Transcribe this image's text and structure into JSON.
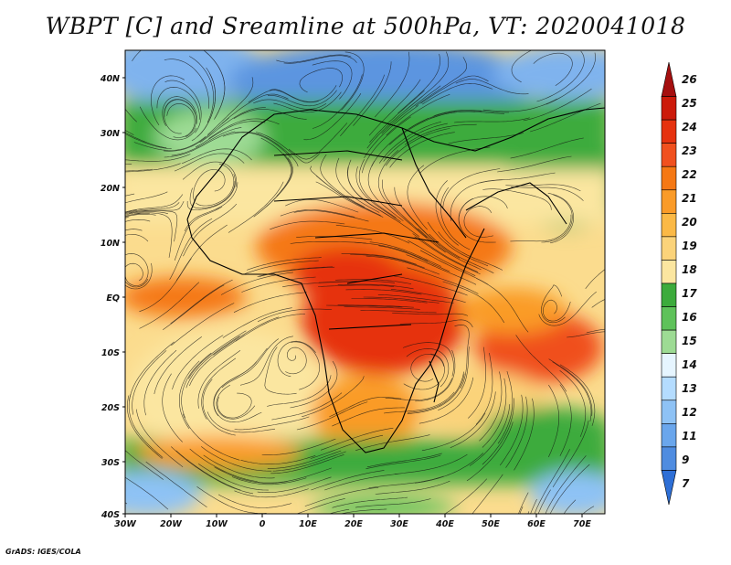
{
  "title": "WBPT [C] and Sreamline at 500hPa, VT: 2020041018",
  "credit": "GrADS: IGES/COLA",
  "lat_labels": [
    "40N",
    "30N",
    "20N",
    "10N",
    "EQ",
    "10S",
    "20S",
    "30S",
    "40S"
  ],
  "lon_labels": [
    "30W",
    "20W",
    "10W",
    "0",
    "10E",
    "20E",
    "30E",
    "40E",
    "50E",
    "60E",
    "70E"
  ],
  "colorbar": {
    "labels": [
      "26",
      "25",
      "24",
      "23",
      "22",
      "21",
      "20",
      "19",
      "18",
      "17",
      "16",
      "15",
      "14",
      "13",
      "12",
      "11",
      "9",
      "7"
    ],
    "colors": [
      "#a50f0f",
      "#cc1a0a",
      "#e6320f",
      "#f0501e",
      "#f57814",
      "#fa9b28",
      "#fbb946",
      "#fbd37a",
      "#fbe6a0",
      "#3cab3c",
      "#5ec25a",
      "#9ddb94",
      "#e6f5ff",
      "#b4dcff",
      "#8ec2f5",
      "#6aa6ec",
      "#4f8ce0",
      "#2e6fd6"
    ]
  }
}
